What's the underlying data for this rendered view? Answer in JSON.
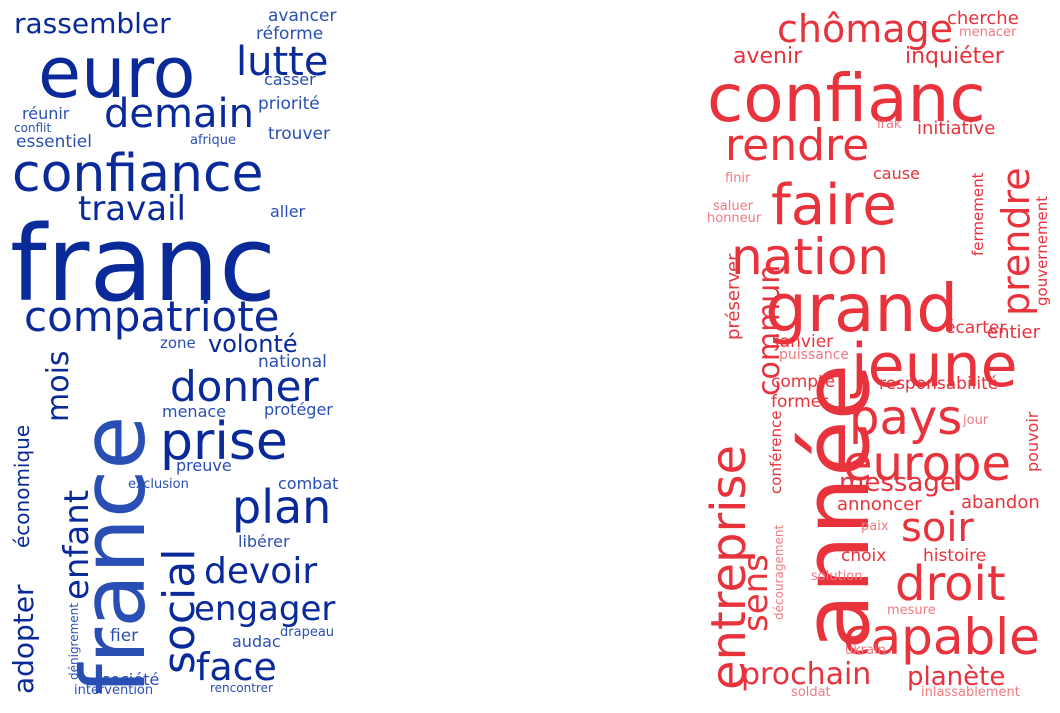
{
  "colors": {
    "blue_dark": "#0a2a9a",
    "blue_mid": "#2a4fb4",
    "red": "#e8323c",
    "red_light": "#f07a80"
  },
  "blue_cloud": {
    "words": [
      "franc",
      "france",
      "euro",
      "confiance",
      "compatriote",
      "prise",
      "donner",
      "lutte",
      "demain",
      "travail",
      "rassembler",
      "plan",
      "devoir",
      "social",
      "engager",
      "face",
      "enfant",
      "mois",
      "volonté",
      "adopter",
      "économique",
      "avancer",
      "réforme",
      "casser",
      "priorité",
      "trouver",
      "réunir",
      "conflit",
      "essentiel",
      "afrique",
      "aller",
      "zone",
      "national",
      "menace",
      "protéger",
      "preuve",
      "exclusion",
      "combat",
      "libérer",
      "fier",
      "audac",
      "drapeau",
      "société",
      "dénigrement",
      "intervention",
      "rencontrer"
    ]
  },
  "red_cloud": {
    "words": [
      "confianc",
      "chômage",
      "cherche",
      "menacer",
      "avenir",
      "inquiéter",
      "rendre",
      "irak",
      "initiative",
      "faire",
      "cause",
      "finir",
      "saluer",
      "honneur",
      "fermement",
      "prendre",
      "gouvernement",
      "nation",
      "grand",
      "préserver",
      "commun",
      "écarter",
      "entier",
      "janvier",
      "puissance",
      "jeune",
      "compte",
      "responsabilité",
      "former",
      "pays",
      "conférence",
      "jour",
      "année",
      "europe",
      "pouvoir",
      "entreprise",
      "message",
      "annoncer",
      "abandon",
      "soir",
      "paix",
      "sens",
      "découragement",
      "choix",
      "histoire",
      "droit",
      "solution",
      "mesure",
      "capable",
      "ukrain",
      "prochain",
      "planète",
      "soldat",
      "inlassablement"
    ]
  }
}
